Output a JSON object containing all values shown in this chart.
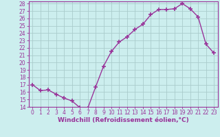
{
  "x": [
    0,
    1,
    2,
    3,
    4,
    5,
    6,
    7,
    8,
    9,
    10,
    11,
    12,
    13,
    14,
    15,
    16,
    17,
    18,
    19,
    20,
    21,
    22,
    23
  ],
  "y": [
    17.0,
    16.2,
    16.3,
    15.7,
    15.2,
    14.8,
    13.9,
    13.8,
    16.7,
    19.5,
    21.5,
    22.8,
    23.5,
    24.5,
    25.2,
    26.5,
    27.2,
    27.2,
    27.3,
    28.0,
    27.3,
    26.2,
    22.5,
    21.3
  ],
  "line_color": "#993399",
  "marker": "+",
  "marker_size": 4,
  "marker_lw": 1.2,
  "bg_color": "#cceeee",
  "grid_color": "#aacccc",
  "xlabel": "Windchill (Refroidissement éolien,°C)",
  "ylim": [
    14,
    28
  ],
  "xlim_min": -0.5,
  "xlim_max": 23.5,
  "yticks": [
    14,
    15,
    16,
    17,
    18,
    19,
    20,
    21,
    22,
    23,
    24,
    25,
    26,
    27,
    28
  ],
  "xticks": [
    0,
    1,
    2,
    3,
    4,
    5,
    6,
    7,
    8,
    9,
    10,
    11,
    12,
    13,
    14,
    15,
    16,
    17,
    18,
    19,
    20,
    21,
    22,
    23
  ],
  "tick_label_fontsize": 5.5,
  "xlabel_fontsize": 6.5,
  "line_width": 1.0,
  "spine_color": "#993399"
}
